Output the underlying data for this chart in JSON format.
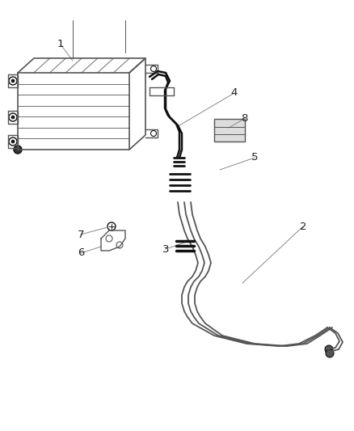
{
  "bg_color": "#ffffff",
  "line_color": "#555555",
  "dark_color": "#111111",
  "label_color": "#222222",
  "fig_width": 4.38,
  "fig_height": 5.33,
  "dpi": 100,
  "label_fontsize": 9.5
}
